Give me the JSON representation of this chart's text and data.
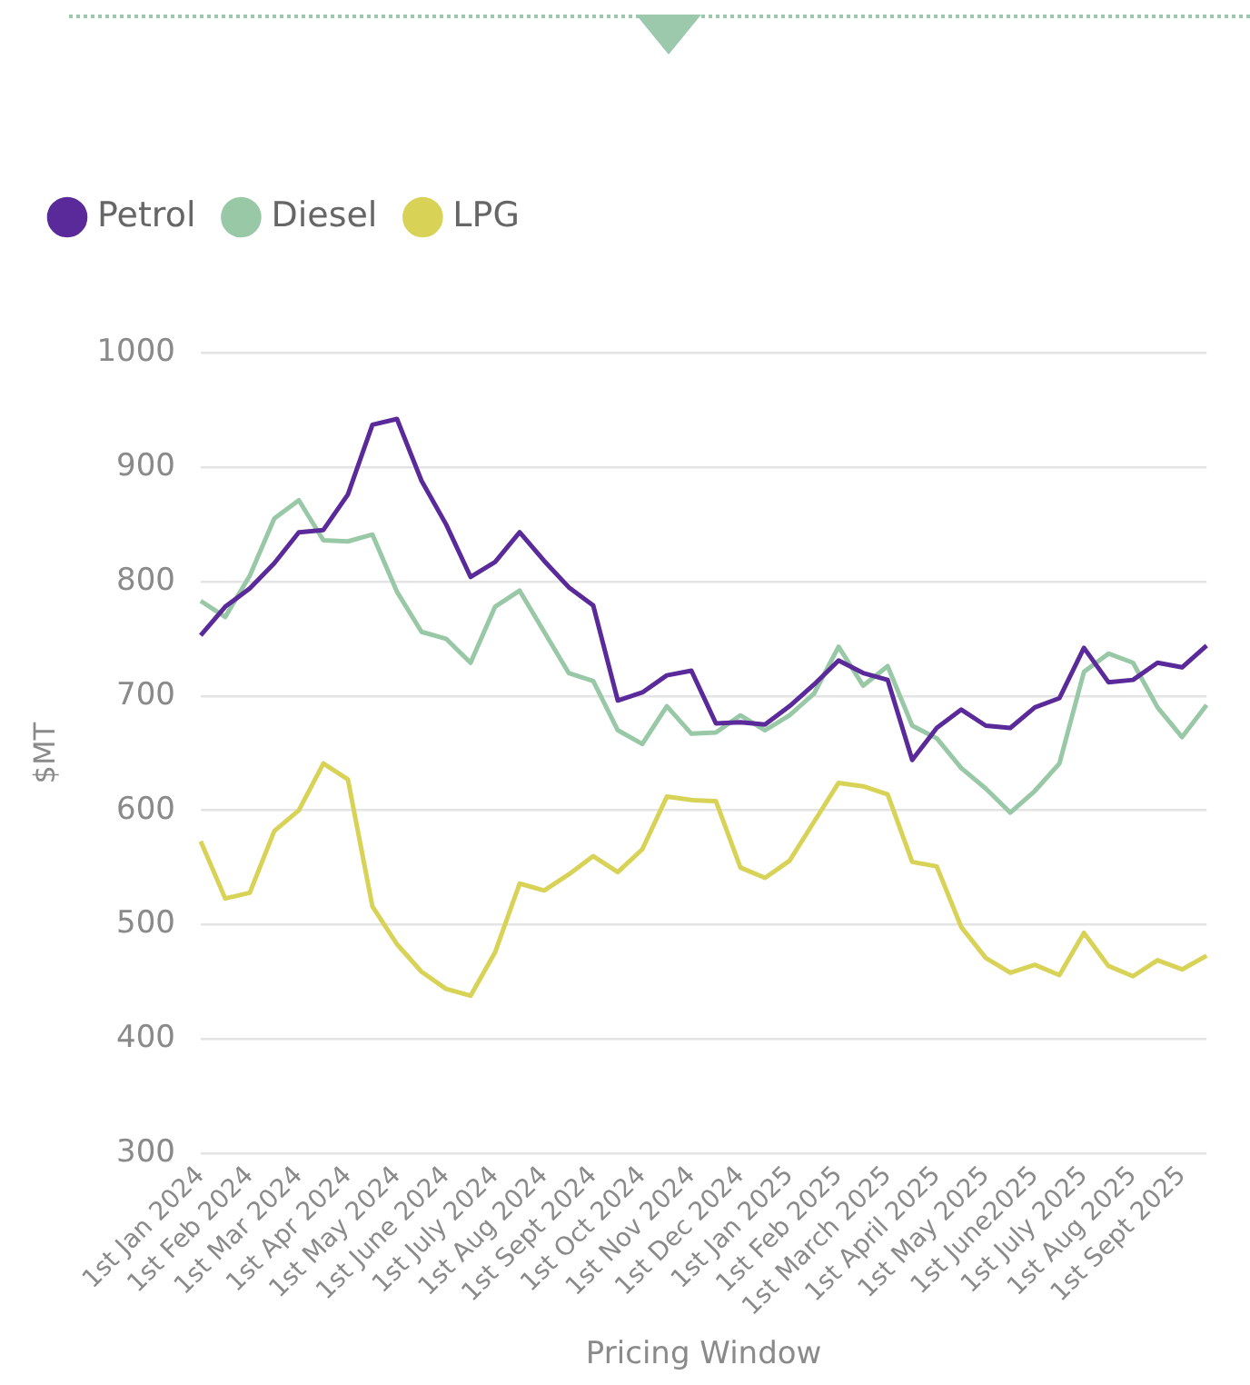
{
  "chart_data": {
    "type": "line",
    "xlabel": "Pricing Window",
    "ylabel": "$MT",
    "categories": [
      "1st Jan 2024",
      null,
      "1st Feb 2024",
      null,
      "1st Mar 2024",
      null,
      "1st Apr 2024",
      null,
      "1st May 2024",
      null,
      "1st June 2024",
      null,
      "1st July 2024",
      null,
      "1st Aug 2024",
      null,
      "1st Sept 2024",
      null,
      "1st Oct 2024",
      null,
      "1st Nov 2024",
      null,
      "1st Dec 2024",
      null,
      "1st Jan 2025",
      null,
      "1st Feb 2025",
      null,
      "1st March 2025",
      null,
      "1st April 2025",
      null,
      "1st May 2025",
      null,
      "1st June2025",
      null,
      "1st July 2025",
      null,
      "1st Aug 2025",
      null,
      "1st Sept 2025",
      null
    ],
    "series": [
      {
        "name": "Petrol",
        "color": "#5b2a9a",
        "values": [
          753,
          778,
          794,
          816,
          843,
          845,
          876,
          937,
          942,
          888,
          850,
          804,
          817,
          843,
          818,
          795,
          779,
          696,
          703,
          718,
          722,
          676,
          677,
          675,
          691,
          710,
          731,
          720,
          714,
          644,
          672,
          688,
          674,
          672,
          690,
          698,
          742,
          712,
          714,
          729,
          725,
          744
        ]
      },
      {
        "name": "Diesel",
        "color": "#98c8a6",
        "values": [
          783,
          769,
          805,
          855,
          871,
          836,
          835,
          841,
          791,
          756,
          750,
          729,
          778,
          792,
          756,
          720,
          713,
          670,
          658,
          691,
          667,
          668,
          683,
          670,
          683,
          702,
          743,
          709,
          726,
          674,
          663,
          637,
          619,
          598,
          617,
          641,
          721,
          737,
          729,
          690,
          664,
          692
        ]
      },
      {
        "name": "LPG",
        "color": "#d8d357",
        "values": [
          573,
          523,
          528,
          582,
          600,
          641,
          627,
          516,
          483,
          459,
          444,
          438,
          476,
          536,
          530,
          544,
          560,
          546,
          566,
          612,
          609,
          608,
          550,
          541,
          556,
          590,
          624,
          621,
          614,
          555,
          551,
          498,
          471,
          458,
          465,
          456,
          493,
          464,
          455,
          469,
          461,
          473
        ]
      }
    ],
    "ylim": [
      300,
      1000
    ],
    "yticks": [
      300,
      400,
      500,
      600,
      700,
      800,
      900,
      1000
    ],
    "grid": "y",
    "legend": "top left",
    "marker": "none",
    "line_style": "solid"
  }
}
